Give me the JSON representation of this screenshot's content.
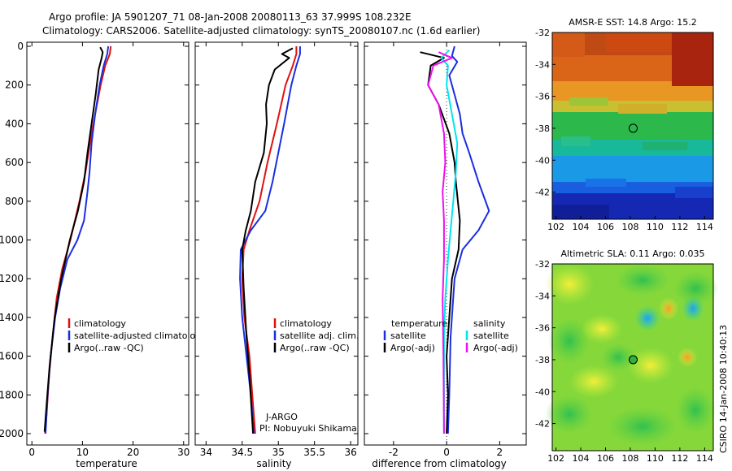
{
  "title": {
    "line1": "Argo profile: JA 5901207_71 08-Jan-2008 20080113_63 37.999S 108.232E",
    "line2": "Climatology: CARS2006. Satellite-adjusted climatology: synTS_20080107.nc (1.6d earlier)"
  },
  "credit": "CSIRO 14-Jan-2008 10:40:13",
  "colors": {
    "clim": "#e01010",
    "sat": "#1a2ee0",
    "argo": "#000000",
    "sat_sal": "#00e5f0",
    "argo_sal": "#ee10ee"
  },
  "chart_data": [
    {
      "type": "line",
      "xlabel": "temperature",
      "ylabel": "",
      "xlim": [
        -1,
        31
      ],
      "ylim": [
        2070,
        0
      ],
      "xticks": [
        "0",
        "10",
        "20",
        "30"
      ],
      "yticks": [
        "0",
        "200",
        "400",
        "600",
        "800",
        "1000",
        "1200",
        "1400",
        "1600",
        "1800",
        "2000"
      ],
      "legend": [
        "climatology",
        "satellite-adjusted climatology",
        "Argo(..raw -QC)"
      ],
      "series": [
        {
          "name": "climatology",
          "color": "clim",
          "points": [
            [
              15.6,
              0
            ],
            [
              15.4,
              40
            ],
            [
              14.5,
              100
            ],
            [
              13.6,
              200
            ],
            [
              12.5,
              350
            ],
            [
              11.5,
              500
            ],
            [
              10.6,
              650
            ],
            [
              9.4,
              800
            ],
            [
              7.6,
              1000
            ],
            [
              6.0,
              1150
            ],
            [
              4.9,
              1300
            ],
            [
              4.1,
              1500
            ],
            [
              3.4,
              1700
            ],
            [
              2.9,
              1900
            ],
            [
              2.6,
              2000
            ]
          ]
        },
        {
          "name": "satellite-adjusted climatology",
          "color": "sat",
          "points": [
            [
              15.1,
              0
            ],
            [
              14.9,
              40
            ],
            [
              14.2,
              100
            ],
            [
              13.4,
              200
            ],
            [
              12.5,
              350
            ],
            [
              11.8,
              500
            ],
            [
              11.4,
              650
            ],
            [
              11.0,
              750
            ],
            [
              10.3,
              900
            ],
            [
              9.0,
              1000
            ],
            [
              7.0,
              1100
            ],
            [
              5.6,
              1250
            ],
            [
              4.6,
              1400
            ],
            [
              3.7,
              1600
            ],
            [
              3.1,
              1800
            ],
            [
              2.7,
              2000
            ]
          ]
        },
        {
          "name": "Argo(..raw -QC)",
          "color": "argo",
          "points": [
            [
              13.5,
              5
            ],
            [
              14.0,
              30
            ],
            [
              13.8,
              60
            ],
            [
              13.2,
              120
            ],
            [
              12.6,
              250
            ],
            [
              11.8,
              400
            ],
            [
              11.0,
              550
            ],
            [
              10.3,
              700
            ],
            [
              9.1,
              850
            ],
            [
              7.5,
              1000
            ],
            [
              5.8,
              1200
            ],
            [
              4.5,
              1400
            ],
            [
              3.5,
              1650
            ],
            [
              2.9,
              1850
            ],
            [
              2.5,
              1990
            ]
          ]
        }
      ]
    },
    {
      "type": "line",
      "xlabel": "salinity",
      "ylabel": "",
      "xlim": [
        33.85,
        36.1
      ],
      "ylim": [
        2070,
        0
      ],
      "xticks": [
        "34",
        "34.5",
        "35",
        "35.5",
        "36"
      ],
      "legend": [
        "climatology",
        "satellite adj. clim.",
        "Argo(..raw -QC)"
      ],
      "annotation": [
        "J-ARGO",
        "PI: Nobuyuki Shikama"
      ],
      "series": [
        {
          "name": "climatology",
          "color": "clim",
          "points": [
            [
              35.25,
              0
            ],
            [
              35.25,
              40
            ],
            [
              35.2,
              100
            ],
            [
              35.1,
              200
            ],
            [
              34.98,
              400
            ],
            [
              34.85,
              600
            ],
            [
              34.74,
              800
            ],
            [
              34.6,
              950
            ],
            [
              34.52,
              1050
            ],
            [
              34.5,
              1200
            ],
            [
              34.53,
              1400
            ],
            [
              34.6,
              1600
            ],
            [
              34.64,
              1800
            ],
            [
              34.68,
              2000
            ]
          ]
        },
        {
          "name": "satellite adj. clim.",
          "color": "sat",
          "points": [
            [
              35.3,
              0
            ],
            [
              35.3,
              40
            ],
            [
              35.25,
              100
            ],
            [
              35.18,
              200
            ],
            [
              35.08,
              400
            ],
            [
              35.0,
              550
            ],
            [
              34.92,
              700
            ],
            [
              34.82,
              850
            ],
            [
              34.62,
              950
            ],
            [
              34.48,
              1050
            ],
            [
              34.47,
              1200
            ],
            [
              34.5,
              1400
            ],
            [
              34.56,
              1600
            ],
            [
              34.62,
              1800
            ],
            [
              34.66,
              2000
            ]
          ]
        },
        {
          "name": "Argo(..raw -QC)",
          "color": "argo",
          "points": [
            [
              35.2,
              10
            ],
            [
              35.05,
              40
            ],
            [
              35.15,
              60
            ],
            [
              34.95,
              120
            ],
            [
              34.87,
              200
            ],
            [
              34.83,
              300
            ],
            [
              34.84,
              400
            ],
            [
              34.8,
              550
            ],
            [
              34.68,
              700
            ],
            [
              34.62,
              850
            ],
            [
              34.55,
              950
            ],
            [
              34.5,
              1050
            ],
            [
              34.52,
              1250
            ],
            [
              34.56,
              1500
            ],
            [
              34.6,
              1700
            ],
            [
              34.65,
              2000
            ]
          ]
        }
      ]
    },
    {
      "type": "line",
      "xlabel": "difference from climatology",
      "ylabel": "",
      "xlim": [
        -3.1,
        3.0
      ],
      "ylim": [
        2070,
        0
      ],
      "xticks": [
        "-2",
        "0",
        "2"
      ],
      "legend_left_title": "temperature",
      "legend_right_title": "salinity",
      "legend": [
        "satellite",
        "Argo(-adj)",
        "satellite",
        "Argo(-adj)"
      ],
      "series": [
        {
          "name": "satellite",
          "color": "sat",
          "points": [
            [
              0.3,
              0
            ],
            [
              0.2,
              50
            ],
            [
              0.4,
              80
            ],
            [
              0.1,
              150
            ],
            [
              0.3,
              250
            ],
            [
              0.5,
              350
            ],
            [
              0.6,
              450
            ],
            [
              0.85,
              550
            ],
            [
              1.2,
              700
            ],
            [
              1.6,
              850
            ],
            [
              1.2,
              950
            ],
            [
              0.6,
              1050
            ],
            [
              0.3,
              1200
            ],
            [
              0.15,
              1500
            ],
            [
              0.1,
              1800
            ],
            [
              0.05,
              2000
            ]
          ]
        },
        {
          "name": "Argo(-adj)",
          "color": "argo",
          "points": [
            [
              -1.0,
              30
            ],
            [
              -0.1,
              60
            ],
            [
              -0.6,
              100
            ],
            [
              -0.7,
              200
            ],
            [
              -0.3,
              300
            ],
            [
              0.1,
              450
            ],
            [
              0.3,
              600
            ],
            [
              0.35,
              700
            ],
            [
              0.5,
              900
            ],
            [
              0.45,
              1050
            ],
            [
              0.2,
              1200
            ],
            [
              0.1,
              1400
            ],
            [
              0.0,
              1600
            ],
            [
              0.05,
              1800
            ],
            [
              0.0,
              2000
            ]
          ]
        },
        {
          "name": "satellite",
          "color": "sat_sal",
          "points": [
            [
              0.1,
              20
            ],
            [
              -0.2,
              60
            ],
            [
              0.05,
              100
            ],
            [
              0.0,
              200
            ],
            [
              0.2,
              350
            ],
            [
              0.4,
              500
            ],
            [
              0.35,
              650
            ],
            [
              0.25,
              800
            ],
            [
              0.15,
              950
            ],
            [
              0.05,
              1100
            ],
            [
              -0.05,
              1300
            ],
            [
              -0.1,
              1500
            ],
            [
              -0.1,
              1800
            ],
            [
              -0.1,
              2000
            ]
          ]
        },
        {
          "name": "Argo(-adj)",
          "color": "argo_sal",
          "points": [
            [
              -0.3,
              30
            ],
            [
              0.2,
              60
            ],
            [
              -0.5,
              100
            ],
            [
              -0.7,
              200
            ],
            [
              -0.3,
              300
            ],
            [
              -0.1,
              450
            ],
            [
              -0.05,
              600
            ],
            [
              -0.15,
              750
            ],
            [
              -0.1,
              900
            ],
            [
              -0.1,
              1100
            ],
            [
              -0.15,
              1300
            ],
            [
              -0.12,
              1600
            ],
            [
              -0.1,
              2000
            ]
          ]
        }
      ]
    },
    {
      "type": "heatmap",
      "title": "AMSR-E SST: 14.8 Argo: 15.2",
      "xlim": [
        101.7,
        114.7
      ],
      "ylim": [
        -43.7,
        -32
      ],
      "xticks": [
        "102",
        "104",
        "106",
        "108",
        "110",
        "112",
        "114"
      ],
      "yticks": [
        "-32",
        "-34",
        "-36",
        "-38",
        "-40",
        "-42"
      ],
      "marker": {
        "lon": 108.232,
        "lat": -37.999
      }
    },
    {
      "type": "heatmap",
      "title": "Altimetric SLA: 0.11 Argo: 0.035",
      "xlim": [
        101.7,
        114.7
      ],
      "ylim": [
        -43.7,
        -32
      ],
      "xticks": [
        "102",
        "104",
        "106",
        "108",
        "110",
        "112",
        "114"
      ],
      "yticks": [
        "-32",
        "-34",
        "-36",
        "-38",
        "-40",
        "-42"
      ],
      "marker": {
        "lon": 108.232,
        "lat": -37.999
      }
    }
  ]
}
